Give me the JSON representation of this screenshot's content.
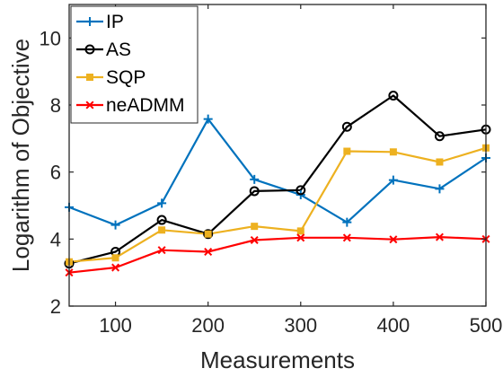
{
  "chart_data": {
    "type": "line",
    "xlabel": "Measurements",
    "ylabel": "Logarithm of Objective",
    "xlim": [
      50,
      500
    ],
    "ylim": [
      2,
      11
    ],
    "xticks": [
      "100",
      "200",
      "300",
      "400",
      "500"
    ],
    "yticks": [
      "2",
      "4",
      "6",
      "8",
      "10"
    ],
    "grid": false,
    "legend_position": "top-left",
    "x": [
      50,
      100,
      150,
      200,
      250,
      300,
      350,
      400,
      450,
      500
    ],
    "series": [
      {
        "name": "IP",
        "color": "#0072BD",
        "marker": "plus",
        "values": [
          4.95,
          4.42,
          5.07,
          7.58,
          5.78,
          5.32,
          4.5,
          5.76,
          5.5,
          6.42
        ]
      },
      {
        "name": "AS",
        "color": "#000000",
        "marker": "circle",
        "values": [
          3.27,
          3.62,
          4.57,
          4.15,
          5.43,
          5.46,
          7.35,
          8.28,
          7.07,
          7.27
        ]
      },
      {
        "name": "SQP",
        "color": "#EDB120",
        "marker": "square",
        "values": [
          3.32,
          3.44,
          4.27,
          4.15,
          4.38,
          4.24,
          6.62,
          6.6,
          6.3,
          6.72
        ]
      },
      {
        "name": "neADMM",
        "color": "#FF0000",
        "marker": "x",
        "values": [
          3.0,
          3.15,
          3.67,
          3.62,
          3.97,
          4.04,
          4.04,
          3.99,
          4.06,
          4.0
        ]
      }
    ]
  }
}
